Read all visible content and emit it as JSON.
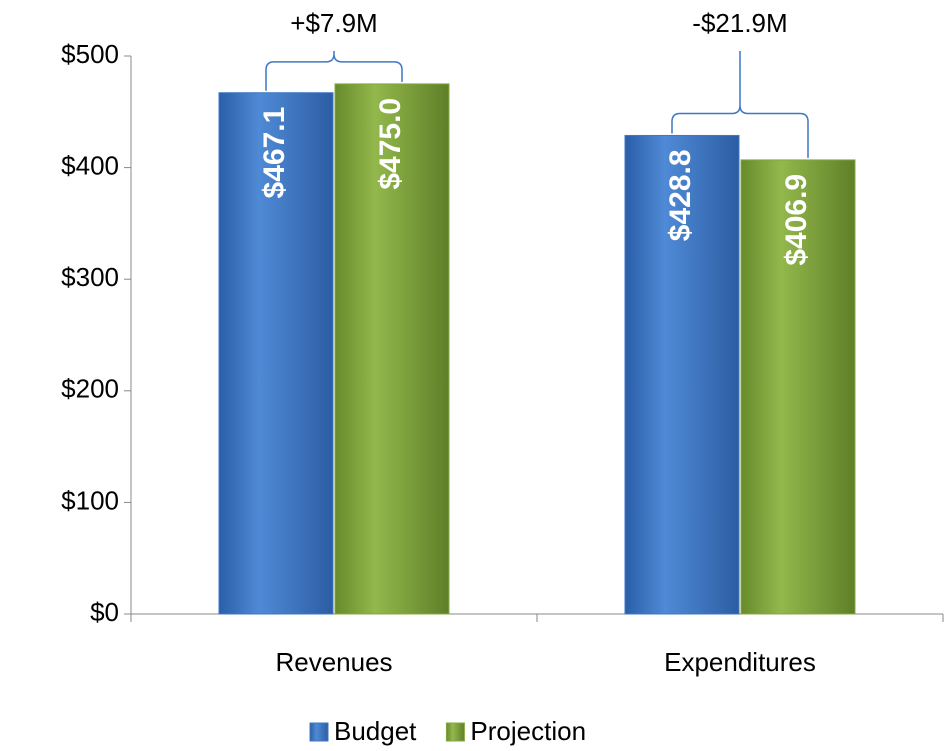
{
  "chart_data": {
    "type": "bar",
    "categories": [
      "Revenues",
      "Expenditures"
    ],
    "series": [
      {
        "name": "Budget",
        "color": "#3f77c4",
        "values": [
          467.1,
          428.8
        ],
        "value_labels": [
          "$467.1",
          "$428.8"
        ]
      },
      {
        "name": "Projection",
        "color": "#84a83f",
        "values": [
          475.0,
          406.9
        ],
        "value_labels": [
          "$475.0",
          "$406.9"
        ]
      }
    ],
    "annotations": [
      "+$7.9M",
      "-$21.9M"
    ],
    "ylim": [
      0,
      500
    ],
    "yticks": [
      {
        "value": 0,
        "label": "$0"
      },
      {
        "value": 100,
        "label": "$100"
      },
      {
        "value": 200,
        "label": "$200"
      },
      {
        "value": 300,
        "label": "$300"
      },
      {
        "value": 400,
        "label": "$400"
      },
      {
        "value": 500,
        "label": "$500"
      }
    ],
    "grid": false,
    "legend": "bottom"
  }
}
